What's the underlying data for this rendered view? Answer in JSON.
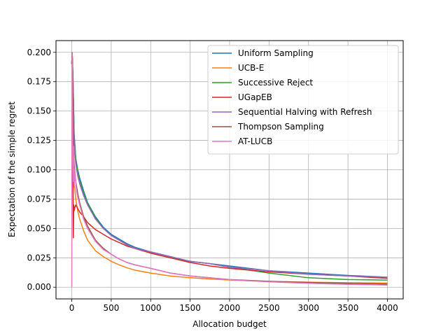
{
  "chart_data": {
    "type": "line",
    "xlabel": "Allocation budget",
    "ylabel": "Expectation of the simple regret",
    "xlim": [
      -200,
      4200
    ],
    "ylim": [
      -0.01,
      0.21
    ],
    "xticks": [
      0,
      500,
      1000,
      1500,
      2000,
      2500,
      3000,
      3500,
      4000
    ],
    "xtick_labels": [
      "0",
      "500",
      "1000",
      "1500",
      "2000",
      "2500",
      "3000",
      "3500",
      "4000"
    ],
    "yticks": [
      0.0,
      0.025,
      0.05,
      0.075,
      0.1,
      0.125,
      0.15,
      0.175,
      0.2
    ],
    "ytick_labels": [
      "0.000",
      "0.025",
      "0.050",
      "0.075",
      "0.100",
      "0.125",
      "0.150",
      "0.175",
      "0.200"
    ],
    "grid": true,
    "legend_position": "top-right",
    "series": [
      {
        "name": "Uniform Sampling",
        "color": "#1f77b4",
        "x": [
          0,
          5,
          10,
          20,
          30,
          50,
          75,
          100,
          150,
          200,
          300,
          400,
          500,
          600,
          700,
          800,
          1000,
          1250,
          1500,
          1750,
          2000,
          2500,
          3000,
          3500,
          4000
        ],
        "y": [
          0.19,
          0.2,
          0.19,
          0.165,
          0.13,
          0.11,
          0.1,
          0.093,
          0.082,
          0.072,
          0.06,
          0.051,
          0.045,
          0.041,
          0.037,
          0.034,
          0.03,
          0.026,
          0.022,
          0.02,
          0.018,
          0.014,
          0.012,
          0.01,
          0.0085
        ]
      },
      {
        "name": "UCB-E",
        "color": "#ff7f0e",
        "x": [
          0,
          5,
          10,
          20,
          30,
          50,
          75,
          100,
          150,
          200,
          300,
          400,
          500,
          600,
          700,
          800,
          1000,
          1250,
          1500,
          1750,
          2000,
          2500,
          3000,
          3500,
          4000
        ],
        "y": [
          0.19,
          0.2,
          0.19,
          0.12,
          0.09,
          0.075,
          0.065,
          0.058,
          0.048,
          0.04,
          0.031,
          0.026,
          0.022,
          0.019,
          0.0165,
          0.0145,
          0.012,
          0.0095,
          0.008,
          0.007,
          0.006,
          0.0048,
          0.0042,
          0.0038,
          0.0035
        ]
      },
      {
        "name": "Successive Reject",
        "color": "#2ca02c",
        "x": [
          0,
          5,
          10,
          20,
          30,
          50,
          75,
          100,
          150,
          200,
          300,
          400,
          500,
          600,
          700,
          800,
          1000,
          1250,
          1500,
          1750,
          2000,
          2500,
          3000,
          3500,
          4000
        ],
        "y": [
          0.19,
          0.2,
          0.19,
          0.165,
          0.13,
          0.11,
          0.098,
          0.09,
          0.08,
          0.071,
          0.059,
          0.05,
          0.044,
          0.04,
          0.036,
          0.033,
          0.029,
          0.025,
          0.022,
          0.02,
          0.017,
          0.012,
          0.008,
          0.0065,
          0.006
        ]
      },
      {
        "name": "UGapEB",
        "color": "#d62728",
        "x": [
          0,
          5,
          10,
          15,
          20,
          25,
          30,
          40,
          50,
          75,
          100,
          150,
          200,
          300,
          400,
          500,
          600,
          700,
          800,
          1000,
          1250,
          1500,
          1750,
          2000,
          2500,
          3000,
          3500,
          4000
        ],
        "y": [
          0.19,
          0.2,
          0.19,
          0.1,
          0.042,
          0.07,
          0.065,
          0.068,
          0.07,
          0.067,
          0.064,
          0.06,
          0.055,
          0.049,
          0.045,
          0.041,
          0.038,
          0.035,
          0.033,
          0.029,
          0.025,
          0.021,
          0.018,
          0.016,
          0.013,
          0.011,
          0.0095,
          0.0075
        ]
      },
      {
        "name": "Sequential Halving with Refresh",
        "color": "#9467bd",
        "x": [
          0,
          5,
          10,
          20,
          30,
          50,
          75,
          100,
          150,
          200,
          300,
          400,
          500,
          600,
          700,
          800,
          1000,
          1250,
          1500,
          1750,
          2000,
          2500,
          3000,
          3500,
          4000
        ],
        "y": [
          0.19,
          0.2,
          0.19,
          0.16,
          0.125,
          0.105,
          0.095,
          0.088,
          0.078,
          0.07,
          0.058,
          0.05,
          0.044,
          0.04,
          0.036,
          0.033,
          0.03,
          0.026,
          0.022,
          0.02,
          0.017,
          0.014,
          0.011,
          0.0095,
          0.0085
        ]
      },
      {
        "name": "Thompson Sampling",
        "color": "#8c564b",
        "x": [
          0,
          5,
          10,
          20,
          30,
          50,
          75,
          100,
          150,
          200,
          300,
          400,
          500,
          600,
          700,
          800,
          1000,
          1250,
          1500,
          1750,
          2000,
          2500,
          3000,
          3500,
          4000
        ],
        "y": [
          0.19,
          0.2,
          0.19,
          0.14,
          0.105,
          0.09,
          0.08,
          0.072,
          0.06,
          0.052,
          0.04,
          0.033,
          0.028,
          0.024,
          0.021,
          0.019,
          0.016,
          0.012,
          0.0095,
          0.008,
          0.0065,
          0.005,
          0.004,
          0.0032,
          0.0026
        ]
      },
      {
        "name": "AT-LUCB",
        "color": "#e377c2",
        "x": [
          0,
          3,
          5,
          8,
          10,
          15,
          20,
          25,
          30,
          40,
          50,
          60,
          75,
          100,
          150,
          200,
          300,
          400,
          500,
          600,
          700,
          800,
          1000,
          1250,
          1500,
          1750,
          2000,
          2500,
          3000,
          3500,
          4000
        ],
        "y": [
          0.0,
          0.15,
          0.2,
          0.17,
          0.15,
          0.105,
          0.09,
          0.12,
          0.085,
          0.1,
          0.09,
          0.082,
          0.077,
          0.07,
          0.058,
          0.05,
          0.039,
          0.032,
          0.028,
          0.024,
          0.021,
          0.019,
          0.016,
          0.012,
          0.0095,
          0.0078,
          0.0063,
          0.0045,
          0.0033,
          0.0024,
          0.0018
        ]
      }
    ]
  }
}
